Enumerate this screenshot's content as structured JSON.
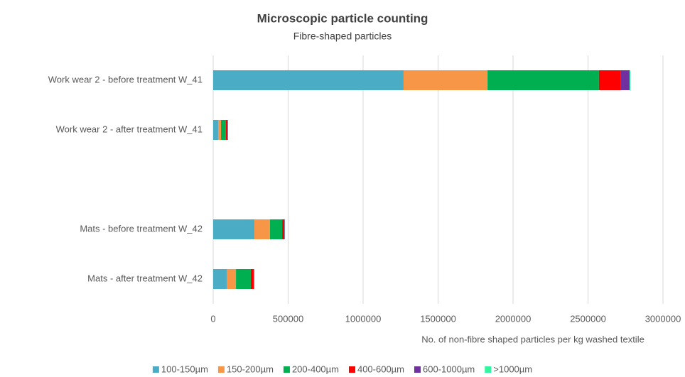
{
  "chart_data": {
    "type": "stacked_bar_horizontal",
    "title": "Microscopic particle counting",
    "subtitle": "Fibre-shaped particles",
    "x_label": "No. of non-fibre shaped particles per kg washed textile",
    "categories": [
      "Work wear 2 - before treatment W_41",
      "Work wear 2 - after treatment W_41",
      null,
      "Mats - before treatment W_42",
      "Mats - after treatment W_42"
    ],
    "series": [
      {
        "name": "100-150µm",
        "color": "#4bacc6",
        "values": [
          1270000,
          33000,
          null,
          275000,
          90000
        ]
      },
      {
        "name": "150-200µm",
        "color": "#f79646",
        "values": [
          560000,
          19000,
          null,
          104000,
          62000
        ]
      },
      {
        "name": "200-400µm",
        "color": "#00b050",
        "values": [
          743000,
          33000,
          null,
          81000,
          99000
        ]
      },
      {
        "name": "400-600µm",
        "color": "#ff0000",
        "values": [
          143000,
          10000,
          null,
          14000,
          19000
        ]
      },
      {
        "name": "600-1000µm",
        "color": "#7030a0",
        "values": [
          61000,
          3000,
          null,
          3000,
          3000
        ]
      },
      {
        "name": ">1000µm",
        "color": "#33f5a0",
        "values": [
          5000,
          1000,
          null,
          2000,
          1000
        ]
      }
    ],
    "xlim": [
      0,
      3000000
    ],
    "xticks": [
      0,
      500000,
      1000000,
      1500000,
      2000000,
      2500000,
      3000000
    ],
    "grid": true,
    "legend": "bottom"
  }
}
